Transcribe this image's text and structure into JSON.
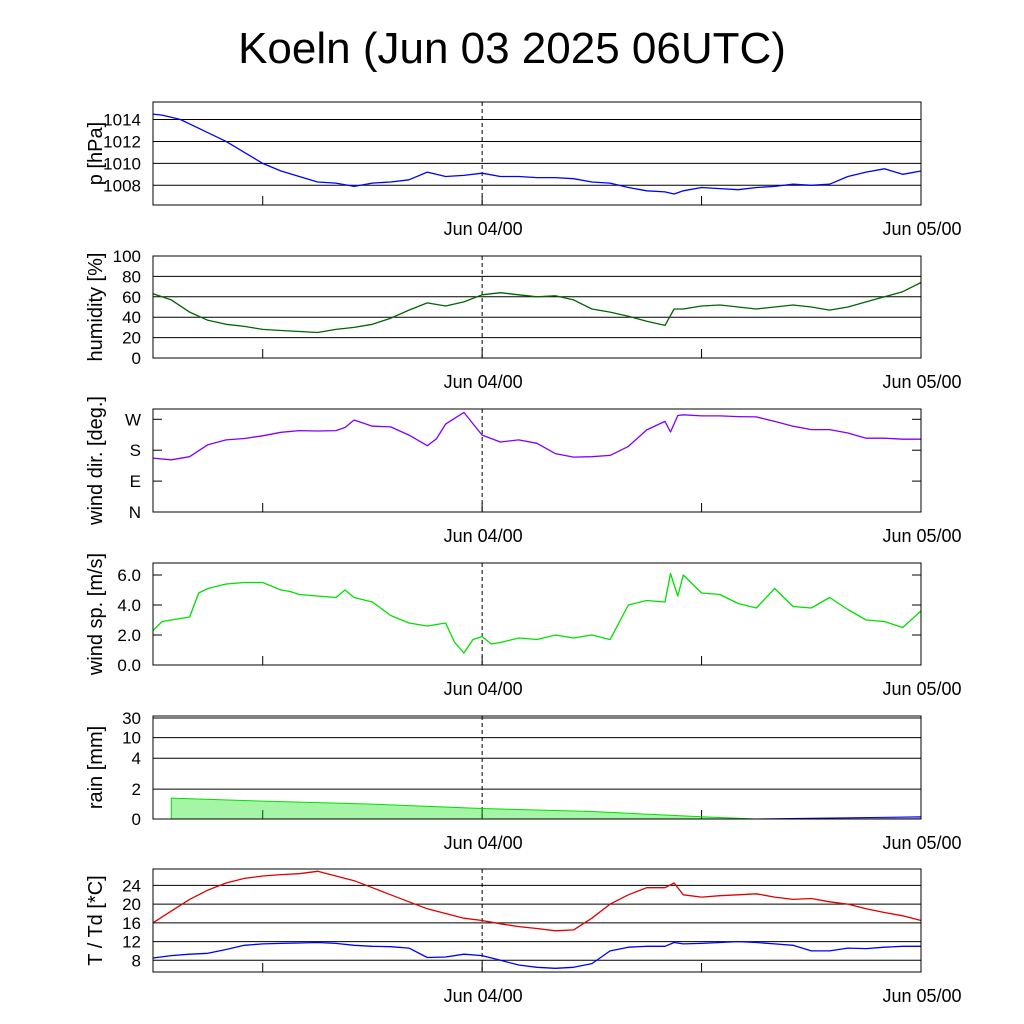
{
  "title": "Koeln (Jun 03 2025 06UTC)",
  "time_axis": {
    "start": "2025-06-03 06:00 UTC",
    "end": "2025-06-05 00:00 UTC",
    "tick_labels": [
      "Jun 04/00",
      "Jun 05/00"
    ],
    "tick_times_h": [
      18,
      42
    ],
    "minor_tick_times_h": [
      6,
      30
    ],
    "dashed_marker_h": 18
  },
  "chart_data": [
    {
      "type": "line",
      "ylabel": "p [hPa]",
      "ylim": [
        1006.2,
        1015.6
      ],
      "yticks": [
        1008,
        1010,
        1012,
        1014
      ],
      "ytick_labels": [
        "1008",
        "1010",
        "1012",
        "1014"
      ],
      "grid": true,
      "series": [
        {
          "color": "#0000ff",
          "x": [
            0,
            0.5,
            1,
            1.5,
            2,
            3,
            4,
            5,
            6,
            7,
            8,
            9,
            10,
            11,
            12,
            13,
            14,
            15,
            16,
            17,
            18,
            19,
            20,
            21,
            22,
            23,
            24,
            25,
            26,
            27,
            28,
            28.5,
            29,
            30,
            31,
            32,
            33,
            34,
            35,
            36,
            37,
            38,
            39,
            40,
            41,
            42
          ],
          "y": [
            1014.5,
            1014.4,
            1014.2,
            1014.0,
            1013.6,
            1012.8,
            1012.0,
            1011.0,
            1010.0,
            1009.3,
            1008.8,
            1008.3,
            1008.2,
            1007.9,
            1008.2,
            1008.3,
            1008.5,
            1009.2,
            1008.8,
            1008.9,
            1009.1,
            1008.8,
            1008.8,
            1008.7,
            1008.7,
            1008.6,
            1008.3,
            1008.2,
            1007.8,
            1007.5,
            1007.4,
            1007.2,
            1007.5,
            1007.8,
            1007.7,
            1007.6,
            1007.8,
            1007.9,
            1008.1,
            1008.0,
            1008.1,
            1008.8,
            1009.2,
            1009.5,
            1009.0,
            1009.3
          ]
        }
      ]
    },
    {
      "type": "line",
      "ylabel": "humidity [%]",
      "ylim": [
        0,
        100
      ],
      "yticks": [
        0,
        20,
        40,
        60,
        80,
        100
      ],
      "ytick_labels": [
        "0",
        "20",
        "40",
        "60",
        "80",
        "100"
      ],
      "grid": true,
      "series": [
        {
          "color": "#006400",
          "x": [
            0,
            1,
            2,
            3,
            4,
            5,
            6,
            7,
            8,
            9,
            10,
            11,
            12,
            13,
            14,
            15,
            16,
            17,
            18,
            19,
            20,
            21,
            22,
            23,
            24,
            25,
            26,
            27,
            28,
            28.5,
            29,
            30,
            31,
            32,
            33,
            34,
            35,
            36,
            37,
            38,
            39,
            40,
            41,
            42
          ],
          "y": [
            63,
            57,
            45,
            37,
            33,
            31,
            28,
            27,
            26,
            25,
            28,
            30,
            33,
            39,
            47,
            54,
            51,
            55,
            62,
            64,
            62,
            60,
            61,
            57,
            48,
            45,
            41,
            36,
            32,
            48,
            48,
            51,
            52,
            50,
            48,
            50,
            52,
            50,
            47,
            50,
            55,
            60,
            65,
            74
          ]
        }
      ]
    },
    {
      "type": "line",
      "ylabel": "wind dir. [deg.]",
      "ylim": [
        0,
        300
      ],
      "yticks": [
        0,
        90,
        180,
        270
      ],
      "ytick_labels": [
        "N",
        "E",
        "S",
        "W"
      ],
      "grid": false,
      "series": [
        {
          "color": "#8000ff",
          "x": [
            0,
            1,
            2,
            3,
            4,
            5,
            6,
            7,
            8,
            9,
            10,
            10.5,
            11,
            12,
            13,
            14,
            15,
            15.5,
            16,
            17,
            18,
            19,
            20,
            21,
            22,
            23,
            24,
            25,
            26,
            27,
            28,
            28.3,
            28.7,
            29,
            30,
            31,
            32,
            33,
            34,
            35,
            36,
            37,
            38,
            39,
            40,
            41,
            42
          ],
          "y": [
            157,
            152,
            161,
            196,
            210,
            214,
            222,
            232,
            237,
            236,
            237,
            246,
            268,
            250,
            248,
            224,
            193,
            213,
            256,
            290,
            224,
            204,
            210,
            200,
            170,
            160,
            161,
            165,
            191,
            239,
            264,
            233,
            281,
            283,
            280,
            280,
            278,
            277,
            264,
            250,
            240,
            240,
            230,
            215,
            215,
            212,
            212
          ]
        }
      ]
    },
    {
      "type": "line",
      "ylabel": "wind sp. [m/s]",
      "ylim": [
        0,
        6.8
      ],
      "yticks": [
        0,
        2,
        4,
        6
      ],
      "ytick_labels": [
        "0.0",
        "2.0",
        "4.0",
        "6.0"
      ],
      "grid": false,
      "series": [
        {
          "color": "#00e000",
          "x": [
            0,
            0.5,
            1,
            2,
            2.5,
            3,
            4,
            5,
            6,
            7,
            7.5,
            8,
            9,
            10,
            10.5,
            11,
            12,
            13,
            14,
            15,
            16,
            16.5,
            17,
            17.5,
            18,
            18.5,
            19,
            20,
            21,
            22,
            23,
            24,
            25,
            26,
            27,
            28,
            28.3,
            28.7,
            29,
            30,
            31,
            32,
            33,
            34,
            35,
            36,
            37,
            38,
            39,
            40,
            41,
            42
          ],
          "y": [
            2.3,
            2.9,
            3.0,
            3.2,
            4.8,
            5.1,
            5.4,
            5.5,
            5.5,
            5.0,
            4.9,
            4.7,
            4.6,
            4.5,
            5.0,
            4.5,
            4.2,
            3.3,
            2.8,
            2.6,
            2.8,
            1.5,
            0.8,
            1.7,
            1.9,
            1.4,
            1.5,
            1.8,
            1.7,
            2.0,
            1.8,
            2.0,
            1.7,
            4.0,
            4.3,
            4.2,
            6.1,
            4.6,
            6.0,
            4.8,
            4.7,
            4.1,
            3.8,
            5.1,
            3.9,
            3.8,
            4.5,
            3.7,
            3.0,
            2.9,
            2.5,
            3.6
          ]
        }
      ]
    },
    {
      "type": "area",
      "ylabel": "rain [mm]",
      "ylim": [
        0,
        40
      ],
      "scale": "nonlinear",
      "yticks": [
        0,
        2,
        4,
        10,
        30
      ],
      "ytick_labels": [
        "0",
        "2",
        "4",
        "10",
        "30"
      ],
      "grid": true,
      "series": [
        {
          "color": "#00e000",
          "x": [
            1,
            6,
            12,
            18,
            24,
            30,
            33
          ],
          "y": [
            1.4,
            1.2,
            1.0,
            0.7,
            0.5,
            0.15,
            0.0
          ]
        },
        {
          "color": "#0000ff",
          "x": [
            33,
            36,
            42
          ],
          "y": [
            0.0,
            0.05,
            0.15
          ]
        }
      ]
    },
    {
      "type": "line",
      "ylabel": "T / Td [*C]",
      "ylim": [
        5.5,
        27.5
      ],
      "yticks": [
        8,
        12,
        16,
        20,
        24
      ],
      "ytick_labels": [
        "8",
        "12",
        "16",
        "20",
        "24"
      ],
      "grid": true,
      "series": [
        {
          "color": "#e00000",
          "x": [
            0,
            1,
            2,
            3,
            4,
            5,
            6,
            7,
            8,
            9,
            10,
            11,
            12,
            13,
            14,
            15,
            16,
            17,
            18,
            19,
            20,
            21,
            22,
            23,
            24,
            25,
            26,
            27,
            28,
            28.5,
            29,
            30,
            31,
            32,
            33,
            34,
            35,
            36,
            37,
            38,
            39,
            40,
            41,
            42
          ],
          "y": [
            16,
            18.5,
            21,
            23,
            24.5,
            25.5,
            26,
            26.3,
            26.5,
            27,
            26,
            25,
            23.5,
            22,
            20.5,
            19,
            18,
            17,
            16.5,
            15.8,
            15.2,
            14.8,
            14.3,
            14.5,
            17,
            20,
            22,
            23.5,
            23.5,
            24.5,
            22,
            21.5,
            21.8,
            22,
            22.2,
            21.5,
            21,
            21.2,
            20.5,
            20,
            19,
            18.2,
            17.5,
            16.5
          ]
        },
        {
          "color": "#0000ff",
          "x": [
            0,
            1,
            2,
            3,
            4,
            5,
            6,
            7,
            8,
            9,
            10,
            11,
            12,
            13,
            14,
            15,
            16,
            17,
            18,
            19,
            20,
            21,
            22,
            23,
            24,
            25,
            26,
            27,
            28,
            28.5,
            29,
            30,
            31,
            32,
            33,
            34,
            35,
            36,
            37,
            38,
            39,
            40,
            41,
            42
          ],
          "y": [
            8.5,
            9,
            9.3,
            9.5,
            10.3,
            11.2,
            11.5,
            11.6,
            11.7,
            11.8,
            11.6,
            11.2,
            11,
            10.9,
            10.6,
            8.6,
            8.7,
            9.3,
            9,
            8,
            7,
            6.5,
            6.3,
            6.5,
            7.3,
            10,
            10.8,
            11,
            11,
            11.8,
            11.5,
            11.6,
            11.8,
            12,
            11.8,
            11.5,
            11.2,
            10,
            10,
            10.6,
            10.5,
            10.8,
            11,
            11
          ]
        }
      ]
    }
  ]
}
